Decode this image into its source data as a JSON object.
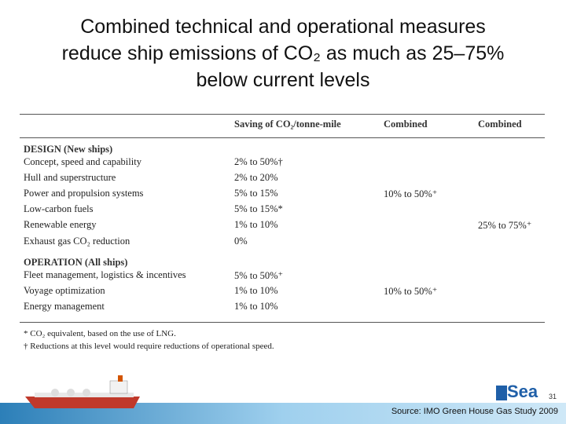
{
  "title": [
    "Combined technical and operational measures",
    "reduce ship emissions of CO₂ as much as 25–75%",
    "below current levels"
  ],
  "table": {
    "columns": [
      "Saving of CO₂/tonne-mile",
      "Combined",
      "Combined"
    ],
    "sections": [
      {
        "heading": "DESIGN (New ships)",
        "rows": [
          [
            "Concept, speed and capability",
            "2% to 50%†",
            null,
            null
          ],
          [
            "Hull and superstructure",
            "2% to 20%",
            null,
            null
          ],
          [
            "Power and propulsion systems",
            "5% to 15%",
            "10% to 50%⁺",
            null
          ],
          [
            "Low-carbon fuels",
            "5% to 15%*",
            null,
            null
          ],
          [
            "Renewable energy",
            "1% to 10%",
            null,
            "25% to 75%⁺"
          ],
          [
            "Exhaust gas CO₂ reduction",
            "0%",
            null,
            null
          ]
        ]
      },
      {
        "heading": "OPERATION (All ships)",
        "rows": [
          [
            "Fleet management, logistics & incentives",
            "5% to 50%⁺",
            null,
            null
          ],
          [
            "Voyage optimization",
            "1% to 10%",
            "10% to 50%⁺",
            null
          ],
          [
            "Energy management",
            "1% to 10%",
            null,
            null
          ]
        ]
      }
    ],
    "footnotes": [
      "*  CO₂ equivalent, based on the use of LNG.",
      "†  Reductions at this level would require reductions of operational speed."
    ]
  },
  "logo": "Sea",
  "page_number": "31",
  "source": "Source: IMO Green House Gas Study 2009"
}
